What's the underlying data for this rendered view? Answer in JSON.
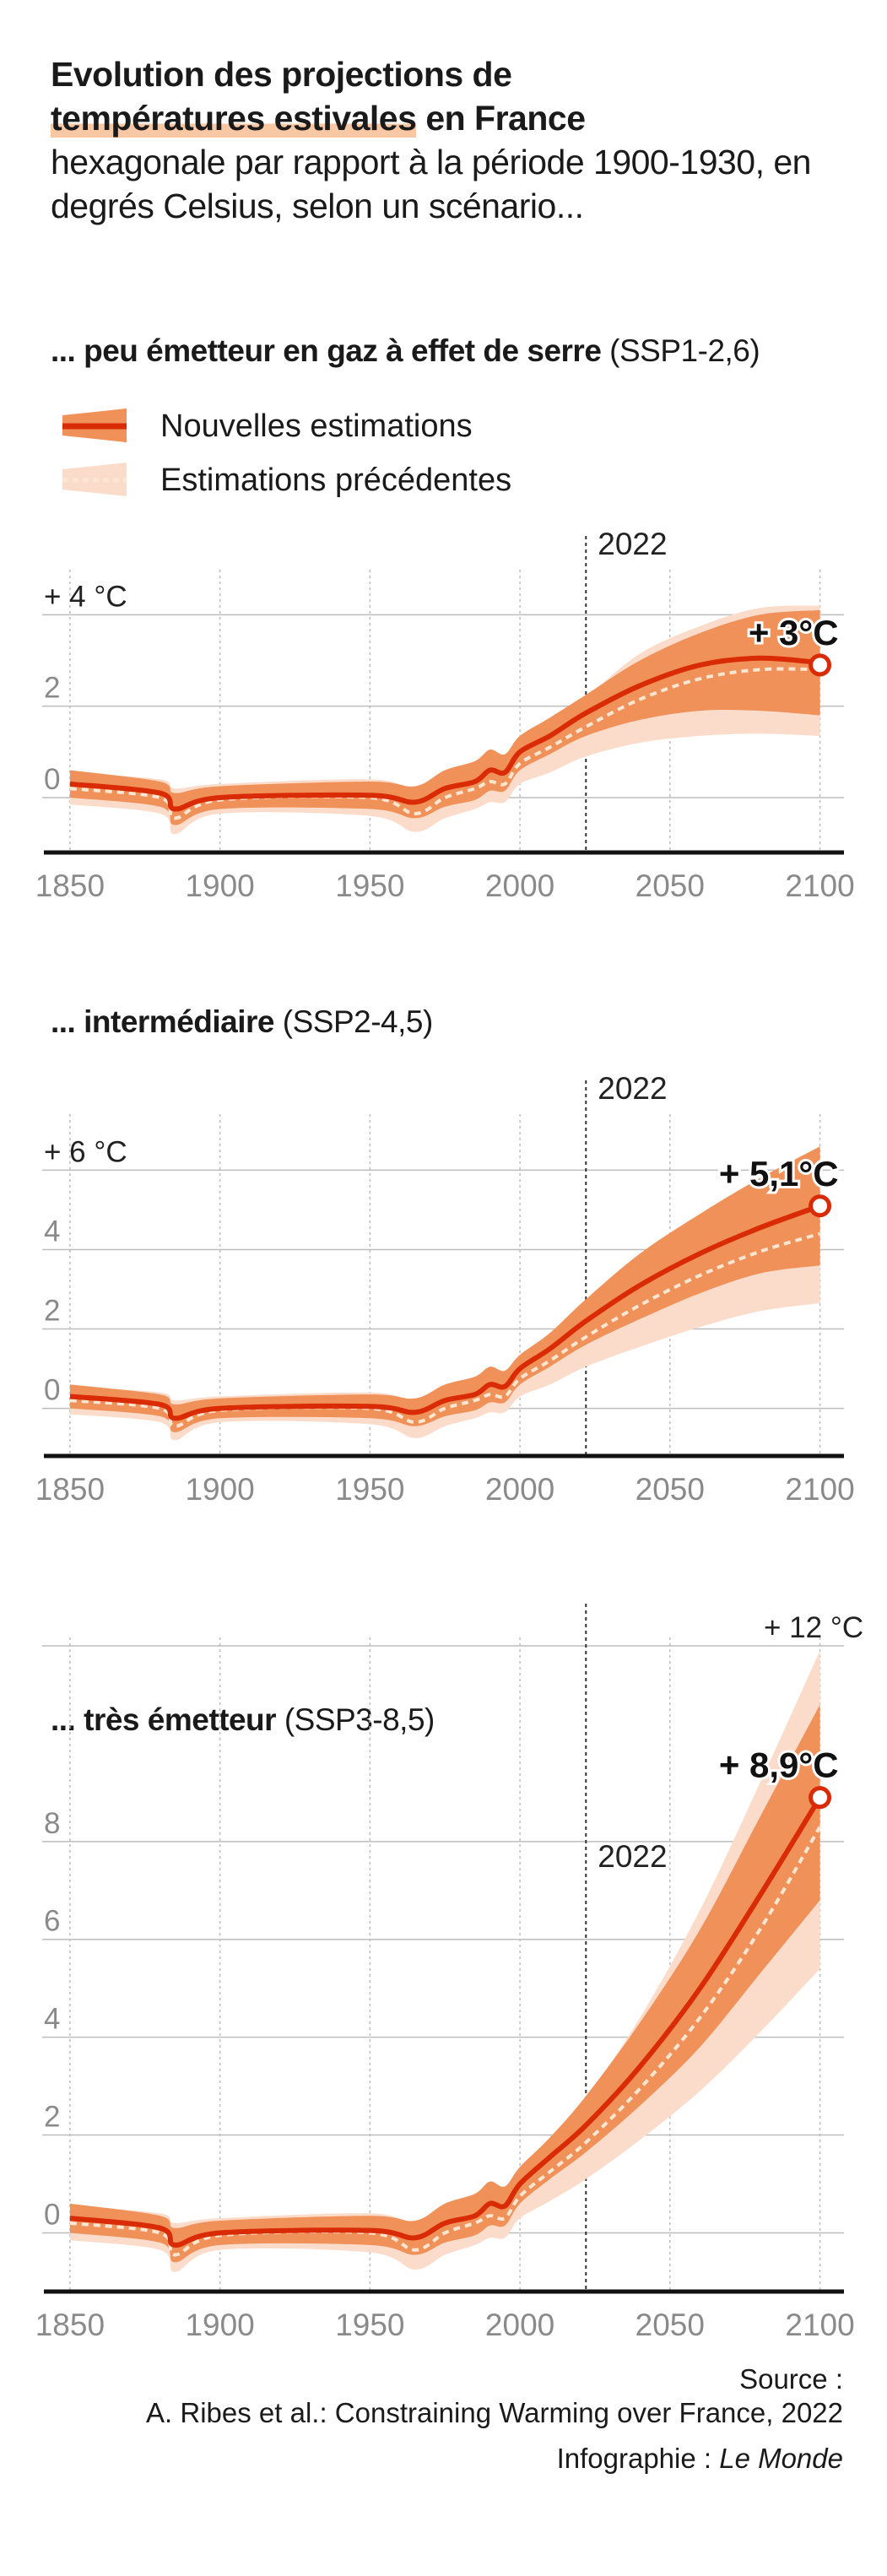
{
  "title": {
    "bold_part1": "Evolution des projections de",
    "bold_highlight": "températures estivales",
    "bold_part2": " en France",
    "regular": "hexagonale par rapport à la période 1900-1930, en degrés Celsius, selon un scénario..."
  },
  "legend": {
    "new": "Nouvelles estimations",
    "previous": "Estimations précédentes"
  },
  "colors": {
    "new_line": "#d92b05",
    "new_band": "#f0915a",
    "previous_band": "#fbdccb",
    "previous_line": "#fbe6d2",
    "highlight": "#f8c8a5",
    "grid": "#bdbdbd",
    "axis": "#111111",
    "tick_label": "#8a8a8a"
  },
  "chart_data": [
    {
      "type": "line",
      "subtitle_bold": "... peu émetteur en gaz à effet de serre",
      "subtitle_regular": " (SSP1-2,6)",
      "x_ticks": [
        "1850",
        "1900",
        "1950",
        "2000",
        "2050",
        "2100"
      ],
      "y_ticks": [
        "0",
        "2",
        "+ 4 °C"
      ],
      "ylim": [
        -1.2,
        4.8
      ],
      "xlim": [
        1843,
        2108
      ],
      "marker_year": "2022",
      "end_label": "+ 3°C",
      "end_value": 2.9,
      "series": [
        {
          "name": "Nouvelles estimations",
          "x": [
            1850,
            1880,
            1885,
            1900,
            1950,
            1965,
            1975,
            1985,
            1990,
            1995,
            2000,
            2010,
            2022,
            2040,
            2060,
            2080,
            2100
          ],
          "y": [
            0.3,
            0.1,
            -0.25,
            0.0,
            0.05,
            -0.1,
            0.2,
            0.35,
            0.6,
            0.55,
            1.0,
            1.35,
            1.85,
            2.45,
            2.9,
            3.05,
            2.95
          ],
          "low": [
            0.0,
            -0.2,
            -0.6,
            -0.25,
            -0.25,
            -0.45,
            -0.2,
            -0.05,
            0.15,
            0.15,
            0.6,
            0.95,
            1.35,
            1.7,
            1.9,
            1.9,
            1.8
          ],
          "high": [
            0.6,
            0.35,
            0.1,
            0.25,
            0.35,
            0.25,
            0.6,
            0.8,
            1.05,
            0.95,
            1.35,
            1.75,
            2.25,
            3.0,
            3.6,
            4.0,
            4.1
          ]
        },
        {
          "name": "Estimations précédentes",
          "x": [
            1850,
            1880,
            1885,
            1900,
            1950,
            1965,
            1975,
            1985,
            1990,
            1995,
            2000,
            2010,
            2022,
            2040,
            2060,
            2080,
            2100
          ],
          "y": [
            0.2,
            0.0,
            -0.45,
            -0.05,
            0.0,
            -0.35,
            0.0,
            0.2,
            0.35,
            0.3,
            0.75,
            1.1,
            1.55,
            2.15,
            2.6,
            2.8,
            2.8
          ],
          "low": [
            -0.15,
            -0.35,
            -0.8,
            -0.35,
            -0.4,
            -0.75,
            -0.45,
            -0.25,
            -0.1,
            -0.1,
            0.3,
            0.55,
            0.9,
            1.2,
            1.35,
            1.4,
            1.35
          ],
          "high": [
            0.55,
            0.4,
            0.2,
            0.3,
            0.4,
            0.2,
            0.55,
            0.75,
            0.95,
            0.85,
            1.3,
            1.7,
            2.2,
            3.15,
            3.75,
            4.15,
            4.2
          ]
        }
      ]
    },
    {
      "type": "line",
      "subtitle_bold": "... intermédiaire",
      "subtitle_regular": " (SSP2-4,5)",
      "x_ticks": [
        "1850",
        "1900",
        "1950",
        "2000",
        "2050",
        "2100"
      ],
      "y_ticks": [
        "0",
        "2",
        "4",
        "+ 6 °C"
      ],
      "ylim": [
        -1.2,
        7.2
      ],
      "xlim": [
        1843,
        2108
      ],
      "marker_year": "2022",
      "end_label": "+ 5,1°C",
      "end_value": 5.1,
      "series": [
        {
          "name": "Nouvelles estimations",
          "x": [
            1850,
            1880,
            1885,
            1900,
            1950,
            1965,
            1975,
            1985,
            1990,
            1995,
            2000,
            2010,
            2022,
            2040,
            2060,
            2080,
            2100
          ],
          "y": [
            0.3,
            0.1,
            -0.25,
            0.0,
            0.05,
            -0.1,
            0.2,
            0.35,
            0.6,
            0.55,
            1.0,
            1.5,
            2.2,
            3.1,
            3.9,
            4.55,
            5.1
          ],
          "low": [
            0.0,
            -0.2,
            -0.6,
            -0.25,
            -0.25,
            -0.45,
            -0.2,
            -0.05,
            0.15,
            0.15,
            0.6,
            1.05,
            1.6,
            2.25,
            2.9,
            3.4,
            3.6
          ],
          "high": [
            0.6,
            0.35,
            0.1,
            0.25,
            0.35,
            0.25,
            0.6,
            0.8,
            1.05,
            0.95,
            1.35,
            1.9,
            2.75,
            3.9,
            4.9,
            5.8,
            6.6
          ]
        },
        {
          "name": "Estimations précédentes",
          "x": [
            1850,
            1880,
            1885,
            1900,
            1950,
            1965,
            1975,
            1985,
            1990,
            1995,
            2000,
            2010,
            2022,
            2040,
            2060,
            2080,
            2100
          ],
          "y": [
            0.2,
            0.0,
            -0.45,
            -0.05,
            0.0,
            -0.35,
            0.0,
            0.2,
            0.35,
            0.3,
            0.75,
            1.2,
            1.8,
            2.6,
            3.35,
            3.95,
            4.4
          ],
          "low": [
            -0.15,
            -0.35,
            -0.8,
            -0.35,
            -0.4,
            -0.75,
            -0.45,
            -0.25,
            -0.1,
            -0.1,
            0.3,
            0.6,
            1.05,
            1.55,
            2.05,
            2.45,
            2.65
          ],
          "high": [
            0.55,
            0.4,
            0.2,
            0.3,
            0.4,
            0.2,
            0.55,
            0.75,
            0.95,
            0.85,
            1.3,
            1.85,
            2.6,
            3.7,
            4.7,
            5.6,
            6.3
          ]
        }
      ]
    },
    {
      "type": "line",
      "subtitle_bold": "... très émetteur",
      "subtitle_regular": " (SSP3-8,5)",
      "x_ticks": [
        "1850",
        "1900",
        "1950",
        "2000",
        "2050",
        "2100"
      ],
      "y_ticks": [
        "0",
        "2",
        "4",
        "6",
        "8",
        "+ 12 °C"
      ],
      "ylim": [
        -1.2,
        12
      ],
      "xlim": [
        1843,
        2108
      ],
      "marker_year": "2022",
      "end_label": "+ 8,9°C",
      "end_value": 8.9,
      "series": [
        {
          "name": "Nouvelles estimations",
          "x": [
            1850,
            1880,
            1885,
            1900,
            1950,
            1965,
            1975,
            1985,
            1990,
            1995,
            2000,
            2010,
            2022,
            2040,
            2060,
            2080,
            2100
          ],
          "y": [
            0.3,
            0.1,
            -0.25,
            0.0,
            0.05,
            -0.1,
            0.2,
            0.35,
            0.6,
            0.55,
            1.0,
            1.55,
            2.2,
            3.4,
            5.0,
            6.9,
            8.9
          ],
          "low": [
            0.0,
            -0.2,
            -0.6,
            -0.25,
            -0.25,
            -0.45,
            -0.2,
            -0.05,
            0.15,
            0.15,
            0.6,
            1.1,
            1.65,
            2.6,
            3.8,
            5.3,
            6.8
          ],
          "high": [
            0.6,
            0.35,
            0.1,
            0.25,
            0.35,
            0.25,
            0.6,
            0.8,
            1.05,
            0.95,
            1.35,
            1.95,
            2.8,
            4.3,
            6.2,
            8.5,
            10.8
          ]
        },
        {
          "name": "Estimations précédentes",
          "x": [
            1850,
            1880,
            1885,
            1900,
            1950,
            1965,
            1975,
            1985,
            1990,
            1995,
            2000,
            2010,
            2022,
            2040,
            2060,
            2080,
            2100
          ],
          "y": [
            0.2,
            0.0,
            -0.45,
            -0.05,
            0.0,
            -0.35,
            0.0,
            0.2,
            0.35,
            0.3,
            0.75,
            1.25,
            1.85,
            2.95,
            4.4,
            6.2,
            8.3
          ],
          "low": [
            -0.15,
            -0.35,
            -0.8,
            -0.35,
            -0.4,
            -0.75,
            -0.45,
            -0.25,
            -0.1,
            -0.1,
            0.3,
            0.65,
            1.1,
            1.9,
            2.9,
            4.1,
            5.4
          ],
          "high": [
            0.55,
            0.4,
            0.2,
            0.3,
            0.4,
            0.2,
            0.55,
            0.75,
            0.95,
            0.85,
            1.3,
            1.9,
            2.75,
            4.4,
            6.6,
            9.2,
            11.9
          ]
        }
      ]
    }
  ],
  "source": {
    "label": "Source :",
    "text": "A. Ribes et al.: Constraining Warming over France, 2022",
    "credit_prefix": "Infographie : ",
    "credit_name": "Le Monde"
  }
}
